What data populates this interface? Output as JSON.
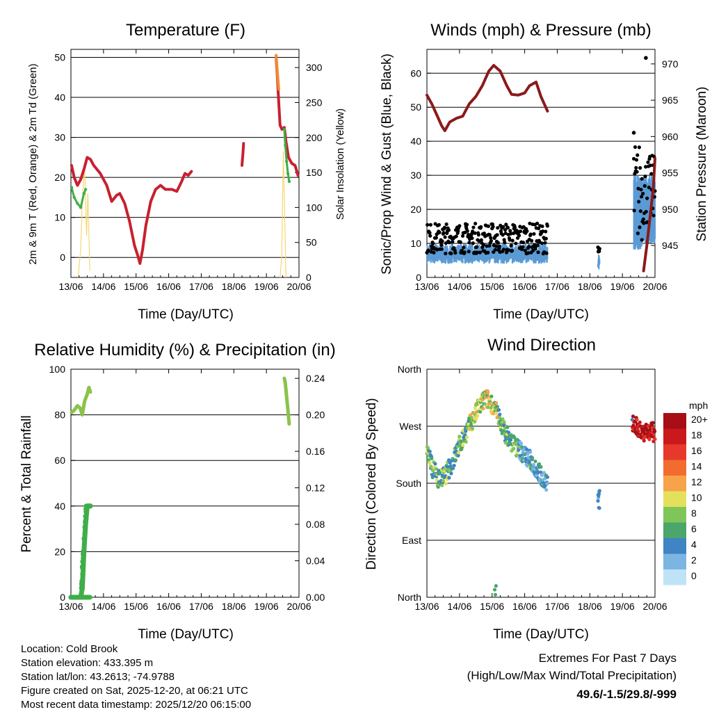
{
  "footer": {
    "location": "Location: Cold Brook",
    "elevation": "Station elevation: 433.395 m",
    "latlon": "Station lat/lon: 43.2613; -74.9788",
    "created": "Figure created on Sat, 2025-12-20, at 06:21 UTC",
    "recent": "Most recent data timestamp: 2025/12/20 06:15:00"
  },
  "extremes": {
    "title": "Extremes For Past 7 Days",
    "subtitle": "(High/Low/Max Wind/Total Precipitation)",
    "values": "49.6/-1.5/29.8/-999",
    "value_color": "#c8202f"
  },
  "legend": {
    "unit": "mph",
    "labels": [
      "20+",
      "18",
      "16",
      "14",
      "12",
      "10",
      "8",
      "6",
      "4",
      "2",
      "0"
    ],
    "colors": [
      "#a50f15",
      "#cb181d",
      "#e6392b",
      "#f26b2f",
      "#f6a34a",
      "#e5e05c",
      "#7fc65a",
      "#4aa66a",
      "#3f84c3",
      "#7db5e2",
      "#bfe3f6"
    ]
  },
  "chart_data": [
    {
      "id": "temperature",
      "type": "line",
      "title": "Temperature (F)",
      "xlabel": "Time (Day/UTC)",
      "ylabel": "2m & 9m T (Red, Orange) & 2m Td (Green)",
      "ylabel_right": "Solar Insolation (Yellow)",
      "xticks": [
        "13/06",
        "14/06",
        "15/06",
        "16/06",
        "17/06",
        "18/06",
        "19/06",
        "20/06"
      ],
      "xlim": [
        13,
        20
      ],
      "ylim": [
        -5,
        52
      ],
      "yticks": [
        0,
        10,
        20,
        30,
        40,
        50
      ],
      "ylim_right": [
        0,
        326
      ],
      "yticks_right": [
        0,
        50,
        100,
        150,
        200,
        250,
        300
      ],
      "series": [
        {
          "name": "2m T",
          "color": "#c8202f",
          "x": [
            13.02,
            13.1,
            13.2,
            13.3,
            13.4,
            13.5,
            13.6,
            13.7,
            13.9,
            14.1,
            14.25,
            14.4,
            14.5,
            14.65,
            14.8,
            14.95,
            15.05,
            15.12,
            15.2,
            15.3,
            15.45,
            15.6,
            15.75,
            15.9,
            16.1,
            16.25,
            16.4,
            16.5,
            16.6,
            16.7
          ],
          "y": [
            23,
            20,
            18,
            19.5,
            22,
            25,
            24.5,
            23,
            21,
            18,
            14,
            15.5,
            16,
            13.5,
            9,
            3,
            0.5,
            -1.5,
            2,
            8,
            14,
            17,
            18,
            17,
            17,
            16.5,
            19,
            21,
            20.5,
            21.5
          ]
        },
        {
          "name": "2m T segment 2",
          "color": "#c8202f",
          "x": [
            18.25,
            18.28,
            18.3
          ],
          "y": [
            23,
            26,
            28.5
          ]
        },
        {
          "name": "2m T segment 3",
          "color": "#c8202f",
          "x": [
            19.3,
            19.33,
            19.37,
            19.42,
            19.48,
            19.55,
            19.6,
            19.68,
            19.78,
            19.88,
            19.97
          ],
          "y": [
            49.6,
            46,
            40,
            33,
            32,
            32.5,
            29,
            25,
            23.5,
            23,
            20.5
          ]
        },
        {
          "name": "9m T",
          "color": "#f28a30",
          "x": [
            19.3,
            19.33,
            19.38
          ],
          "y": [
            50.5,
            47,
            42
          ]
        },
        {
          "name": "2m Td",
          "color": "#3fae49",
          "x": [
            13.02,
            13.1,
            13.2,
            13.3,
            13.4,
            13.45
          ],
          "y": [
            17.5,
            15,
            13.5,
            12.5,
            16,
            17
          ]
        },
        {
          "name": "2m Td segment 2",
          "color": "#3fae49",
          "x": [
            19.55,
            19.58,
            19.62,
            19.66,
            19.7
          ],
          "y": [
            32,
            28,
            24,
            21,
            19
          ]
        }
      ],
      "insolation": {
        "name": "Solar Insolation",
        "color": "#f5d76e",
        "x": [
          13.22,
          13.3,
          13.35,
          13.42,
          13.48,
          13.52,
          13.58,
          19.42,
          19.47,
          19.52,
          19.56,
          19.6
        ],
        "y": [
          0,
          40,
          110,
          160,
          60,
          120,
          10,
          0,
          30,
          180,
          90,
          0
        ]
      }
    },
    {
      "id": "winds",
      "type": "scatter",
      "title": "Winds (mph) & Pressure (mb)",
      "xlabel": "Time (Day/UTC)",
      "ylabel": "Sonic/Prop Wind & Gust (Blue, Black)",
      "ylabel_right": "Station Pressure (Maroon)",
      "xticks": [
        "13/06",
        "14/06",
        "15/06",
        "16/06",
        "17/06",
        "18/06",
        "19/06",
        "20/06"
      ],
      "xlim": [
        13,
        20
      ],
      "ylim": [
        0,
        67
      ],
      "yticks": [
        0,
        10,
        20,
        30,
        40,
        50,
        60
      ],
      "ylim_right": [
        940.6,
        972.0
      ],
      "yticks_right": [
        945,
        950,
        955,
        960,
        965,
        970
      ],
      "series": [
        {
          "name": "Wind (sonic/prop)",
          "color": "#5b9bd5",
          "ranges": [
            [
              13.0,
              16.7,
              4,
              10
            ],
            [
              18.25,
              18.3,
              2,
              7
            ],
            [
              19.35,
              19.6,
              8,
              30
            ],
            [
              19.6,
              20.0,
              10,
              30
            ]
          ]
        },
        {
          "name": "Gust",
          "color": "#000000",
          "ranges": [
            [
              13.0,
              16.7,
              7,
              16
            ],
            [
              18.25,
              18.3,
              5,
              10
            ],
            [
              19.35,
              19.6,
              10,
              40
            ],
            [
              19.6,
              20.0,
              15,
              36
            ]
          ]
        },
        {
          "name": "Station Pressure",
          "color": "#8b1a1a",
          "x": [
            13.0,
            13.15,
            13.3,
            13.45,
            13.55,
            13.7,
            13.9,
            14.1,
            14.3,
            14.5,
            14.7,
            14.9,
            15.05,
            15.25,
            15.45,
            15.6,
            15.8,
            16.0,
            16.15,
            16.35,
            16.5,
            16.6,
            16.7
          ],
          "y": [
            965.7,
            964.5,
            963.0,
            961.5,
            960.8,
            962.0,
            962.5,
            962.8,
            964.5,
            965.5,
            967.0,
            969.0,
            969.8,
            969.0,
            967.0,
            965.8,
            965.7,
            966.0,
            967.0,
            967.5,
            965.5,
            964.5,
            963.5
          ]
        },
        {
          "name": "Station Pressure segment 2",
          "color": "#8b1a1a",
          "x": [
            19.65,
            19.75,
            19.85,
            19.95,
            20.0
          ],
          "y": [
            941.5,
            945.0,
            949.0,
            953.0,
            957.0
          ]
        }
      ],
      "outliers": [
        [
          19.72,
          64.5
        ],
        [
          19.35,
          42.5
        ]
      ]
    },
    {
      "id": "humidity",
      "type": "line",
      "title": "Relative Humidity (%) & Precipitation (in)",
      "xlabel": "Time (Day/UTC)",
      "ylabel": "Percent & Total Rainfall",
      "xticks": [
        "13/06",
        "14/06",
        "15/06",
        "16/06",
        "17/06",
        "18/06",
        "19/06",
        "20/06"
      ],
      "xlim": [
        13,
        20
      ],
      "ylim": [
        0,
        100
      ],
      "yticks": [
        0,
        20,
        40,
        60,
        80,
        100
      ],
      "ylim_right": [
        0,
        0.25
      ],
      "yticks_right": [
        "0.00",
        "0.04",
        "0.08",
        "0.12",
        "0.16",
        "0.20",
        "0.24"
      ],
      "series": [
        {
          "name": "RH",
          "color": "#8bc34a",
          "x": [
            13.02,
            13.1,
            13.2,
            13.28,
            13.35,
            13.42,
            13.5,
            13.55,
            13.6
          ],
          "y": [
            81,
            82,
            84,
            83,
            80,
            86,
            89,
            92,
            90
          ]
        },
        {
          "name": "RH segment 2",
          "color": "#8bc34a",
          "x": [
            19.55,
            19.58,
            19.62,
            19.66,
            19.7
          ],
          "y": [
            96,
            94,
            88,
            82,
            76
          ]
        },
        {
          "name": "Precipitation",
          "color": "#3fae49",
          "x": [
            13.0,
            13.2,
            13.3,
            13.35,
            13.4,
            13.45,
            13.5,
            13.6
          ],
          "y": [
            0,
            0,
            0.0,
            0.01,
            0.05,
            0.08,
            0.1,
            0.1
          ]
        }
      ]
    },
    {
      "id": "direction",
      "type": "scatter",
      "title": "Wind Direction",
      "xlabel": "Time (Day/UTC)",
      "ylabel": "Direction (Colored By Speed)",
      "xticks": [
        "13/06",
        "14/06",
        "15/06",
        "16/06",
        "17/06",
        "18/06",
        "19/06",
        "20/06"
      ],
      "xlim": [
        13,
        20
      ],
      "ylim": [
        0,
        360
      ],
      "yticks": [
        "North",
        "East",
        "South",
        "West",
        "North"
      ],
      "series": [
        {
          "name": "Direction trend",
          "t": [
            13.0,
            13.2,
            13.4,
            13.6,
            13.8,
            14.0,
            14.2,
            14.4,
            14.6,
            14.8,
            15.0,
            15.2,
            15.4,
            15.6,
            15.8,
            16.0,
            16.2,
            16.4,
            16.6,
            16.7
          ],
          "dir": [
            230,
            200,
            185,
            195,
            215,
            240,
            260,
            280,
            300,
            315,
            305,
            285,
            260,
            245,
            235,
            225,
            215,
            200,
            185,
            180
          ]
        },
        {
          "name": "Direction segment 2",
          "t": [
            18.25,
            18.3
          ],
          "dir": [
            150,
            155
          ]
        },
        {
          "name": "Direction segment 3",
          "t": [
            19.3,
            19.4,
            19.5,
            19.6,
            19.8,
            20.0
          ],
          "dir": [
            275,
            270,
            265,
            262,
            262,
            260
          ]
        }
      ]
    }
  ]
}
